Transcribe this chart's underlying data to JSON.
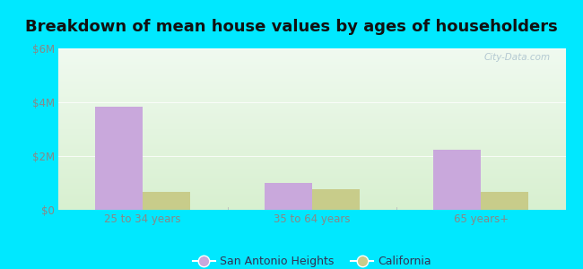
{
  "title": "Breakdown of mean house values by ages of householders",
  "categories": [
    "25 to 34 years",
    "35 to 64 years",
    "65 years+"
  ],
  "san_antonio_values": [
    3850000,
    1000000,
    2250000
  ],
  "california_values": [
    680000,
    780000,
    680000
  ],
  "bar_color_san_antonio": "#c9a8dc",
  "bar_color_california": "#c8cc8a",
  "ylim": [
    0,
    6000000
  ],
  "yticks": [
    0,
    2000000,
    4000000,
    6000000
  ],
  "ytick_labels": [
    "$0",
    "$2M",
    "$4M",
    "$6M"
  ],
  "legend_san_antonio": "San Antonio Heights",
  "legend_california": "California",
  "background_outer": "#00e8ff",
  "bg_top": "#f0faf0",
  "bg_bottom": "#d8f0d0",
  "watermark": "City-Data.com",
  "bar_width": 0.28,
  "title_fontsize": 13,
  "tick_color": "#888888",
  "grid_color": "#ddeecc",
  "separator_color": "#bbbbbb"
}
